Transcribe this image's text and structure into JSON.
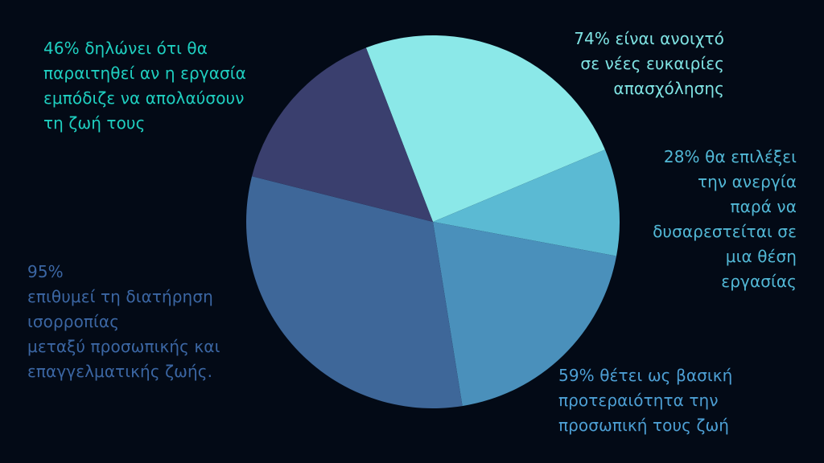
{
  "colors": {
    "background": "#030a16"
  },
  "chart_data": {
    "type": "pie",
    "title": "",
    "slices": [
      {
        "label": "74% είναι ανοιχτό\nσε νέες ευκαιρίες\nαπασχόλησης",
        "value": 74,
        "color": "#8be8e8",
        "label_color": "#7fe3e3"
      },
      {
        "label": "28% θα επιλέξει\nτην ανεργία \nπαρά να\nδυσαρεστείται σε\nμια θέση\nεργασίας",
        "value": 28,
        "color": "#5bbad3",
        "label_color": "#52b8d6"
      },
      {
        "label": "59% θέτει ως βασική\nπροτεραιότητα την\nπροσωπική τους ζωή",
        "value": 59,
        "color": "#4a90bb",
        "label_color": "#4d9fd4"
      },
      {
        "label": "95%\nεπιθυμεί τη διατήρηση\nισορροπίας\nμεταξύ προσωπικής και\nεπαγγελματικής ζωής.",
        "value": 95,
        "color": "#3e6799",
        "label_color": "#3b66a3"
      },
      {
        "label": "46% δηλώνει ότι θα\nπαραιτηθεί αν η εργασία\nεμπόδιζε να απολαύσουν\nτη ζωή τους",
        "value": 46,
        "color": "#3a3f6e",
        "label_color": "#1fcfc0"
      }
    ]
  }
}
